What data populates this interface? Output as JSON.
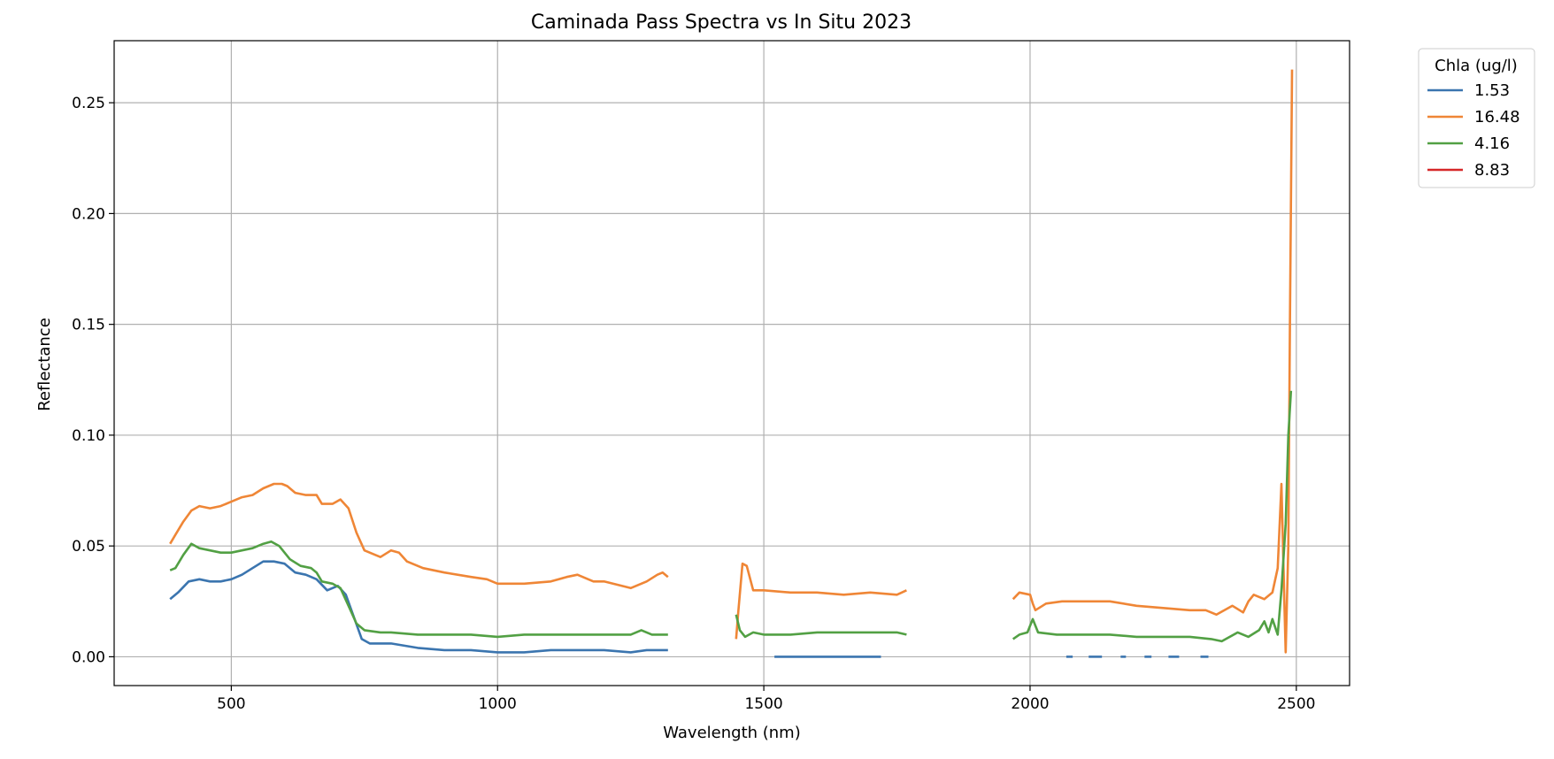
{
  "chart_data": {
    "type": "line",
    "title": "Caminada Pass Spectra vs In Situ 2023",
    "xlabel": "Wavelength (nm)",
    "ylabel": "Reflectance",
    "xlim": [
      280,
      2600
    ],
    "ylim": [
      -0.013,
      0.278
    ],
    "xticks": [
      500,
      1000,
      1500,
      2000,
      2500
    ],
    "xtick_labels": [
      "500",
      "1000",
      "1500",
      "2000",
      "2500"
    ],
    "yticks": [
      0.0,
      0.05,
      0.1,
      0.15,
      0.2,
      0.25
    ],
    "ytick_labels": [
      "0.00",
      "0.05",
      "0.10",
      "0.15",
      "0.20",
      "0.25"
    ],
    "grid": true,
    "legend": {
      "title": "Chla (ug/l)",
      "placement": "outside-top-right"
    },
    "series": [
      {
        "name": "1.53",
        "color": "#3b75af",
        "segments": [
          [
            [
              385,
              0.026
            ],
            [
              400,
              0.029
            ],
            [
              420,
              0.034
            ],
            [
              440,
              0.035
            ],
            [
              460,
              0.034
            ],
            [
              480,
              0.034
            ],
            [
              500,
              0.035
            ],
            [
              520,
              0.037
            ],
            [
              540,
              0.04
            ],
            [
              560,
              0.043
            ],
            [
              580,
              0.043
            ],
            [
              600,
              0.042
            ],
            [
              620,
              0.038
            ],
            [
              640,
              0.037
            ],
            [
              660,
              0.035
            ],
            [
              680,
              0.03
            ],
            [
              700,
              0.032
            ],
            [
              715,
              0.028
            ],
            [
              730,
              0.018
            ],
            [
              745,
              0.008
            ],
            [
              760,
              0.006
            ],
            [
              780,
              0.006
            ],
            [
              800,
              0.006
            ],
            [
              850,
              0.004
            ],
            [
              900,
              0.003
            ],
            [
              950,
              0.003
            ],
            [
              1000,
              0.002
            ],
            [
              1050,
              0.002
            ],
            [
              1100,
              0.003
            ],
            [
              1150,
              0.003
            ],
            [
              1200,
              0.003
            ],
            [
              1250,
              0.002
            ],
            [
              1280,
              0.003
            ],
            [
              1300,
              0.003
            ],
            [
              1320,
              0.003
            ]
          ],
          [
            [
              1520,
              0.0
            ],
            [
              1560,
              0.0
            ],
            [
              1600,
              0.0
            ],
            [
              1650,
              0.0
            ],
            [
              1700,
              0.0
            ],
            [
              1720,
              0.0
            ]
          ],
          [
            [
              2068,
              0.0
            ],
            [
              2080,
              0.0
            ]
          ],
          [
            [
              2110,
              0.0
            ],
            [
              2135,
              0.0
            ]
          ],
          [
            [
              2170,
              0.0
            ],
            [
              2180,
              0.0
            ]
          ],
          [
            [
              2215,
              0.0
            ],
            [
              2228,
              0.0
            ]
          ],
          [
            [
              2260,
              0.0
            ],
            [
              2280,
              0.0
            ]
          ],
          [
            [
              2320,
              0.0
            ],
            [
              2335,
              0.0
            ]
          ]
        ]
      },
      {
        "name": "16.48",
        "color": "#ef8636",
        "segments": [
          [
            [
              385,
              0.051
            ],
            [
              395,
              0.055
            ],
            [
              410,
              0.061
            ],
            [
              425,
              0.066
            ],
            [
              440,
              0.068
            ],
            [
              460,
              0.067
            ],
            [
              480,
              0.068
            ],
            [
              500,
              0.07
            ],
            [
              520,
              0.072
            ],
            [
              540,
              0.073
            ],
            [
              560,
              0.076
            ],
            [
              580,
              0.078
            ],
            [
              595,
              0.078
            ],
            [
              605,
              0.077
            ],
            [
              620,
              0.074
            ],
            [
              640,
              0.073
            ],
            [
              660,
              0.073
            ],
            [
              670,
              0.069
            ],
            [
              690,
              0.069
            ],
            [
              705,
              0.071
            ],
            [
              720,
              0.067
            ],
            [
              735,
              0.056
            ],
            [
              750,
              0.048
            ],
            [
              770,
              0.046
            ],
            [
              780,
              0.045
            ],
            [
              800,
              0.048
            ],
            [
              815,
              0.047
            ],
            [
              830,
              0.043
            ],
            [
              860,
              0.04
            ],
            [
              900,
              0.038
            ],
            [
              950,
              0.036
            ],
            [
              980,
              0.035
            ],
            [
              1000,
              0.033
            ],
            [
              1050,
              0.033
            ],
            [
              1100,
              0.034
            ],
            [
              1130,
              0.036
            ],
            [
              1150,
              0.037
            ],
            [
              1180,
              0.034
            ],
            [
              1200,
              0.034
            ],
            [
              1250,
              0.031
            ],
            [
              1280,
              0.034
            ],
            [
              1300,
              0.037
            ],
            [
              1310,
              0.038
            ],
            [
              1320,
              0.036
            ]
          ],
          [
            [
              1448,
              0.008
            ],
            [
              1452,
              0.02
            ],
            [
              1460,
              0.042
            ],
            [
              1468,
              0.041
            ],
            [
              1480,
              0.03
            ],
            [
              1500,
              0.03
            ],
            [
              1550,
              0.029
            ],
            [
              1600,
              0.029
            ],
            [
              1650,
              0.028
            ],
            [
              1700,
              0.029
            ],
            [
              1750,
              0.028
            ],
            [
              1768,
              0.03
            ]
          ],
          [
            [
              1968,
              0.026
            ],
            [
              1980,
              0.029
            ],
            [
              2000,
              0.028
            ],
            [
              2005,
              0.024
            ],
            [
              2010,
              0.021
            ],
            [
              2030,
              0.024
            ],
            [
              2060,
              0.025
            ],
            [
              2100,
              0.025
            ],
            [
              2150,
              0.025
            ],
            [
              2200,
              0.023
            ],
            [
              2250,
              0.022
            ],
            [
              2300,
              0.021
            ],
            [
              2330,
              0.021
            ],
            [
              2350,
              0.019
            ],
            [
              2380,
              0.023
            ],
            [
              2400,
              0.02
            ],
            [
              2410,
              0.025
            ],
            [
              2420,
              0.028
            ],
            [
              2440,
              0.026
            ],
            [
              2455,
              0.029
            ],
            [
              2465,
              0.04
            ],
            [
              2472,
              0.078
            ],
            [
              2478,
              0.02
            ],
            [
              2480,
              0.002
            ],
            [
              2485,
              0.05
            ],
            [
              2488,
              0.15
            ],
            [
              2492,
              0.265
            ]
          ]
        ]
      },
      {
        "name": "4.16",
        "color": "#52a044",
        "segments": [
          [
            [
              385,
              0.039
            ],
            [
              395,
              0.04
            ],
            [
              410,
              0.046
            ],
            [
              425,
              0.051
            ],
            [
              440,
              0.049
            ],
            [
              460,
              0.048
            ],
            [
              480,
              0.047
            ],
            [
              500,
              0.047
            ],
            [
              520,
              0.048
            ],
            [
              540,
              0.049
            ],
            [
              560,
              0.051
            ],
            [
              575,
              0.052
            ],
            [
              590,
              0.05
            ],
            [
              610,
              0.044
            ],
            [
              630,
              0.041
            ],
            [
              650,
              0.04
            ],
            [
              660,
              0.038
            ],
            [
              670,
              0.034
            ],
            [
              690,
              0.033
            ],
            [
              705,
              0.031
            ],
            [
              720,
              0.023
            ],
            [
              735,
              0.015
            ],
            [
              750,
              0.012
            ],
            [
              780,
              0.011
            ],
            [
              800,
              0.011
            ],
            [
              850,
              0.01
            ],
            [
              900,
              0.01
            ],
            [
              950,
              0.01
            ],
            [
              1000,
              0.009
            ],
            [
              1050,
              0.01
            ],
            [
              1100,
              0.01
            ],
            [
              1150,
              0.01
            ],
            [
              1200,
              0.01
            ],
            [
              1250,
              0.01
            ],
            [
              1270,
              0.012
            ],
            [
              1290,
              0.01
            ],
            [
              1320,
              0.01
            ]
          ],
          [
            [
              1448,
              0.019
            ],
            [
              1455,
              0.012
            ],
            [
              1465,
              0.009
            ],
            [
              1480,
              0.011
            ],
            [
              1500,
              0.01
            ],
            [
              1550,
              0.01
            ],
            [
              1600,
              0.011
            ],
            [
              1650,
              0.011
            ],
            [
              1700,
              0.011
            ],
            [
              1750,
              0.011
            ],
            [
              1768,
              0.01
            ]
          ],
          [
            [
              1968,
              0.008
            ],
            [
              1980,
              0.01
            ],
            [
              1995,
              0.011
            ],
            [
              2005,
              0.017
            ],
            [
              2015,
              0.011
            ],
            [
              2050,
              0.01
            ],
            [
              2100,
              0.01
            ],
            [
              2150,
              0.01
            ],
            [
              2200,
              0.009
            ],
            [
              2250,
              0.009
            ],
            [
              2300,
              0.009
            ],
            [
              2340,
              0.008
            ],
            [
              2360,
              0.007
            ],
            [
              2390,
              0.011
            ],
            [
              2410,
              0.009
            ],
            [
              2430,
              0.012
            ],
            [
              2440,
              0.016
            ],
            [
              2448,
              0.011
            ],
            [
              2455,
              0.017
            ],
            [
              2465,
              0.01
            ],
            [
              2472,
              0.03
            ],
            [
              2480,
              0.06
            ],
            [
              2485,
              0.1
            ],
            [
              2490,
              0.12
            ]
          ]
        ]
      },
      {
        "name": "8.83",
        "color": "#d62728",
        "segments": []
      }
    ]
  }
}
